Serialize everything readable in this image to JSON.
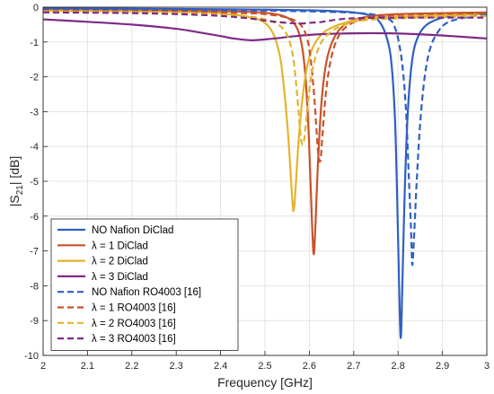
{
  "chart_data": {
    "type": "line",
    "title": "",
    "xlabel": "Frequency [GHz]",
    "ylabel": "|S21| [dB]",
    "xlim": [
      2,
      3
    ],
    "ylim": [
      -10,
      0
    ],
    "xticks": [
      "2",
      "2.1",
      "2.2",
      "2.3",
      "2.4",
      "2.5",
      "2.6",
      "2.7",
      "2.8",
      "2.9",
      "3"
    ],
    "yticks": [
      "0",
      "-1",
      "-2",
      "-3",
      "-4",
      "-5",
      "-6",
      "-7",
      "-8",
      "-9",
      "-10"
    ],
    "grid": true,
    "legend_position": "bottom-left",
    "series": [
      {
        "name": "NO Nafion DiClad",
        "color": "#2f5fc2",
        "dash": "solid",
        "points": [
          [
            2.0,
            -0.03
          ],
          [
            2.3,
            -0.05
          ],
          [
            2.5,
            -0.07
          ],
          [
            2.6,
            -0.09
          ],
          [
            2.65,
            -0.11
          ],
          [
            2.7,
            -0.15
          ],
          [
            2.74,
            -0.25
          ],
          [
            2.76,
            -0.45
          ],
          [
            2.775,
            -0.9
          ],
          [
            2.785,
            -1.6
          ],
          [
            2.793,
            -3.2
          ],
          [
            2.798,
            -5.5
          ],
          [
            2.802,
            -7.8
          ],
          [
            2.806,
            -9.5
          ],
          [
            2.81,
            -7.8
          ],
          [
            2.815,
            -5.3
          ],
          [
            2.822,
            -3.0
          ],
          [
            2.832,
            -1.5
          ],
          [
            2.845,
            -0.85
          ],
          [
            2.865,
            -0.5
          ],
          [
            2.9,
            -0.3
          ],
          [
            2.95,
            -0.2
          ],
          [
            3.0,
            -0.15
          ]
        ]
      },
      {
        "name": "λ = 1 DiClad",
        "color": "#c8532a",
        "dash": "solid",
        "points": [
          [
            2.0,
            -0.08
          ],
          [
            2.3,
            -0.1
          ],
          [
            2.45,
            -0.13
          ],
          [
            2.5,
            -0.16
          ],
          [
            2.54,
            -0.25
          ],
          [
            2.565,
            -0.45
          ],
          [
            2.58,
            -0.9
          ],
          [
            2.59,
            -1.8
          ],
          [
            2.597,
            -3.2
          ],
          [
            2.602,
            -4.8
          ],
          [
            2.606,
            -6.2
          ],
          [
            2.61,
            -7.1
          ],
          [
            2.614,
            -6.2
          ],
          [
            2.619,
            -4.6
          ],
          [
            2.627,
            -2.8
          ],
          [
            2.638,
            -1.6
          ],
          [
            2.655,
            -0.9
          ],
          [
            2.68,
            -0.5
          ],
          [
            2.72,
            -0.3
          ],
          [
            2.8,
            -0.2
          ],
          [
            3.0,
            -0.15
          ]
        ]
      },
      {
        "name": "λ = 2 DiClad",
        "color": "#e3b42c",
        "dash": "solid",
        "points": [
          [
            2.0,
            -0.1
          ],
          [
            2.2,
            -0.12
          ],
          [
            2.35,
            -0.15
          ],
          [
            2.42,
            -0.2
          ],
          [
            2.47,
            -0.3
          ],
          [
            2.5,
            -0.45
          ],
          [
            2.52,
            -0.8
          ],
          [
            2.535,
            -1.5
          ],
          [
            2.545,
            -2.6
          ],
          [
            2.553,
            -3.8
          ],
          [
            2.559,
            -5.0
          ],
          [
            2.564,
            -5.85
          ],
          [
            2.569,
            -5.2
          ],
          [
            2.575,
            -4.0
          ],
          [
            2.583,
            -2.8
          ],
          [
            2.595,
            -1.7
          ],
          [
            2.61,
            -1.1
          ],
          [
            2.635,
            -0.7
          ],
          [
            2.68,
            -0.45
          ],
          [
            2.75,
            -0.3
          ],
          [
            3.0,
            -0.2
          ]
        ]
      },
      {
        "name": "λ = 3 DiClad",
        "color": "#7d2a87",
        "dash": "solid",
        "points": [
          [
            2.0,
            -0.35
          ],
          [
            2.1,
            -0.42
          ],
          [
            2.2,
            -0.5
          ],
          [
            2.3,
            -0.62
          ],
          [
            2.35,
            -0.72
          ],
          [
            2.4,
            -0.83
          ],
          [
            2.43,
            -0.9
          ],
          [
            2.47,
            -0.95
          ],
          [
            2.52,
            -0.9
          ],
          [
            2.57,
            -0.83
          ],
          [
            2.62,
            -0.78
          ],
          [
            2.7,
            -0.75
          ],
          [
            2.78,
            -0.75
          ],
          [
            2.85,
            -0.78
          ],
          [
            2.92,
            -0.83
          ],
          [
            3.0,
            -0.9
          ]
        ]
      },
      {
        "name": "NO Nafion RO4003 [16]",
        "color": "#2f5fc2",
        "dash": "dashed",
        "points": [
          [
            2.0,
            -0.06
          ],
          [
            2.3,
            -0.08
          ],
          [
            2.5,
            -0.1
          ],
          [
            2.6,
            -0.12
          ],
          [
            2.7,
            -0.16
          ],
          [
            2.75,
            -0.22
          ],
          [
            2.78,
            -0.35
          ],
          [
            2.79,
            -0.5
          ],
          [
            2.8,
            -0.9
          ],
          [
            2.81,
            -1.7
          ],
          [
            2.818,
            -3.0
          ],
          [
            2.824,
            -4.8
          ],
          [
            2.829,
            -6.3
          ],
          [
            2.832,
            -7.4
          ],
          [
            2.836,
            -6.6
          ],
          [
            2.842,
            -5.0
          ],
          [
            2.85,
            -3.3
          ],
          [
            2.86,
            -2.0
          ],
          [
            2.872,
            -1.2
          ],
          [
            2.888,
            -0.75
          ],
          [
            2.91,
            -0.45
          ],
          [
            2.95,
            -0.3
          ],
          [
            3.0,
            -0.2
          ]
        ]
      },
      {
        "name": "λ = 1 RO4003 [16]",
        "color": "#c8532a",
        "dash": "dashed",
        "points": [
          [
            2.0,
            -0.1
          ],
          [
            2.3,
            -0.13
          ],
          [
            2.45,
            -0.17
          ],
          [
            2.5,
            -0.2
          ],
          [
            2.55,
            -0.3
          ],
          [
            2.58,
            -0.5
          ],
          [
            2.595,
            -0.9
          ],
          [
            2.603,
            -1.5
          ],
          [
            2.61,
            -2.4
          ],
          [
            2.615,
            -3.3
          ],
          [
            2.62,
            -4.2
          ],
          [
            2.625,
            -4.4
          ],
          [
            2.63,
            -3.6
          ],
          [
            2.637,
            -2.5
          ],
          [
            2.647,
            -1.6
          ],
          [
            2.66,
            -1.0
          ],
          [
            2.68,
            -0.6
          ],
          [
            2.72,
            -0.35
          ],
          [
            2.8,
            -0.22
          ],
          [
            3.0,
            -0.17
          ]
        ]
      },
      {
        "name": "λ = 2 RO4003 [16]",
        "color": "#e3b42c",
        "dash": "dashed",
        "points": [
          [
            2.0,
            -0.12
          ],
          [
            2.2,
            -0.14
          ],
          [
            2.35,
            -0.18
          ],
          [
            2.45,
            -0.25
          ],
          [
            2.5,
            -0.35
          ],
          [
            2.53,
            -0.5
          ],
          [
            2.55,
            -0.8
          ],
          [
            2.563,
            -1.4
          ],
          [
            2.571,
            -2.3
          ],
          [
            2.577,
            -3.2
          ],
          [
            2.582,
            -3.85
          ],
          [
            2.587,
            -3.9
          ],
          [
            2.592,
            -3.4
          ],
          [
            2.598,
            -2.6
          ],
          [
            2.607,
            -1.8
          ],
          [
            2.62,
            -1.2
          ],
          [
            2.64,
            -0.8
          ],
          [
            2.68,
            -0.5
          ],
          [
            2.75,
            -0.35
          ],
          [
            3.0,
            -0.25
          ]
        ]
      },
      {
        "name": "λ = 3 RO4003 [16]",
        "color": "#7d2a87",
        "dash": "dashed",
        "points": [
          [
            2.0,
            -0.15
          ],
          [
            2.2,
            -0.17
          ],
          [
            2.35,
            -0.22
          ],
          [
            2.42,
            -0.27
          ],
          [
            2.47,
            -0.33
          ],
          [
            2.51,
            -0.4
          ],
          [
            2.55,
            -0.45
          ],
          [
            2.58,
            -0.47
          ],
          [
            2.6,
            -0.45
          ],
          [
            2.63,
            -0.42
          ],
          [
            2.66,
            -0.36
          ],
          [
            2.7,
            -0.32
          ],
          [
            2.8,
            -0.3
          ],
          [
            3.0,
            -0.3
          ]
        ]
      }
    ]
  }
}
